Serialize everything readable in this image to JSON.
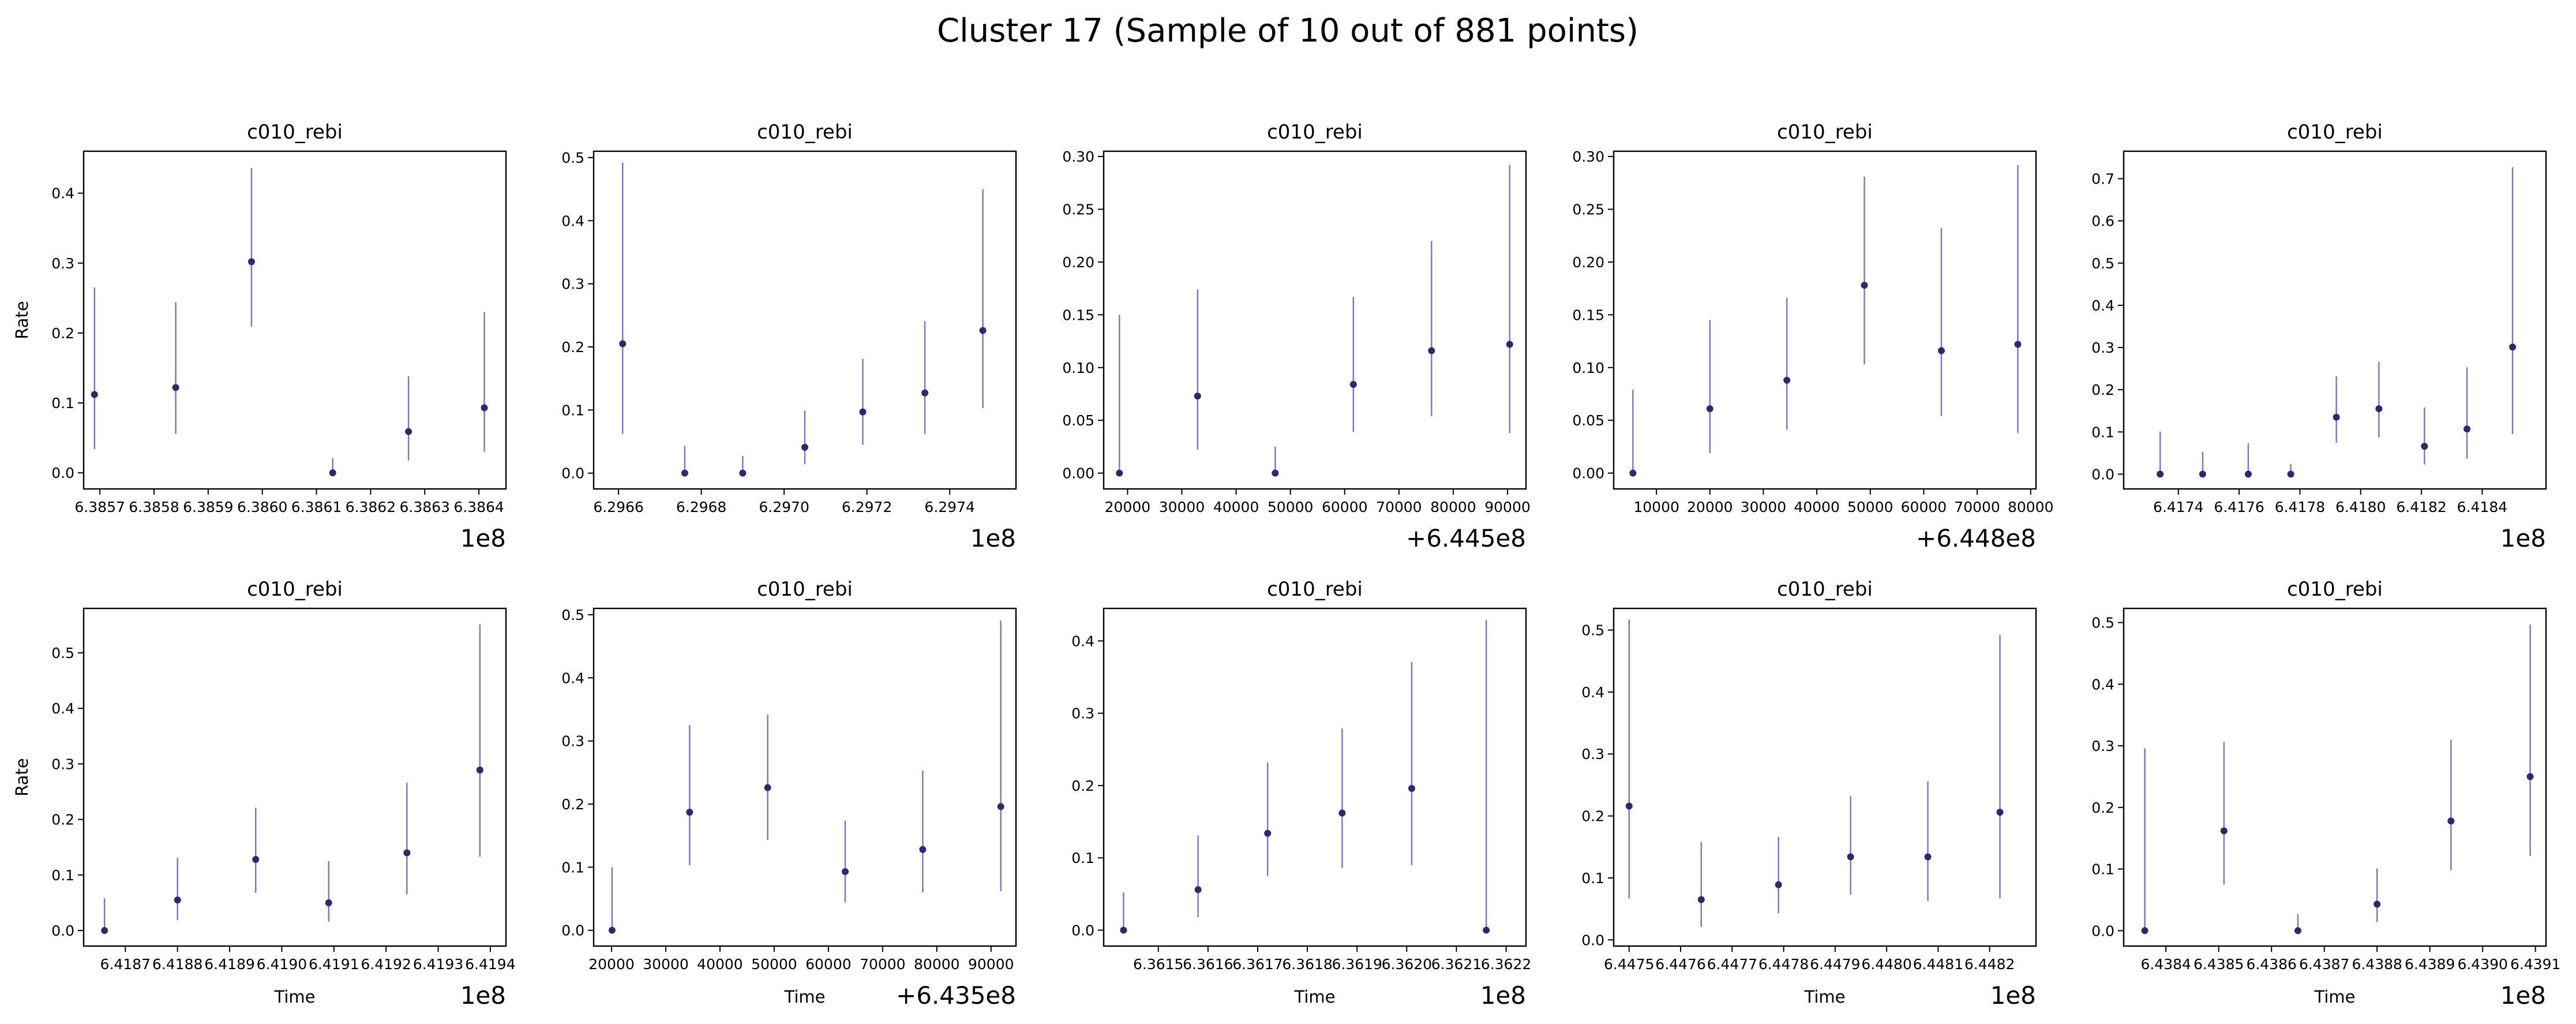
{
  "title": "Cluster 17 (Sample of 10 out of 881 points)",
  "colors": {
    "marker": "#2c2a6b",
    "errorbar": "#7a72c9",
    "axis": "#000000"
  },
  "chart_data": [
    {
      "type": "scatter",
      "title": "c010_rebi",
      "xlabel": "",
      "ylabel": "Rate",
      "offset_text": "1e8",
      "xlim": [
        6.38567,
        6.38645
      ],
      "ylim": [
        -0.023,
        0.46
      ],
      "xticks": [
        6.3857,
        6.3858,
        6.3859,
        6.386,
        6.3861,
        6.3862,
        6.3863,
        6.3864
      ],
      "xtick_labels": [
        "6.3857",
        "6.3858",
        "6.3859",
        "6.3860",
        "6.3861",
        "6.3862",
        "6.3863",
        "6.3864"
      ],
      "yticks": [
        0,
        0.1,
        0.2,
        0.3,
        0.4
      ],
      "ytick_labels": [
        "0.0",
        "0.1",
        "0.2",
        "0.3",
        "0.4"
      ],
      "points": [
        {
          "x": 6.38569,
          "y": 0.112,
          "lo": 0.034,
          "hi": 0.265
        },
        {
          "x": 6.38584,
          "y": 0.122,
          "lo": 0.056,
          "hi": 0.244
        },
        {
          "x": 6.38598,
          "y": 0.302,
          "lo": 0.209,
          "hi": 0.436
        },
        {
          "x": 6.38613,
          "y": 0.0,
          "lo": 0.0,
          "hi": 0.021
        },
        {
          "x": 6.38627,
          "y": 0.059,
          "lo": 0.018,
          "hi": 0.138
        },
        {
          "x": 6.38641,
          "y": 0.093,
          "lo": 0.03,
          "hi": 0.23
        }
      ]
    },
    {
      "type": "scatter",
      "title": "c010_rebi",
      "xlabel": "",
      "ylabel": "",
      "offset_text": "1e8",
      "xlim": [
        6.29654,
        6.29756
      ],
      "ylim": [
        -0.025,
        0.51
      ],
      "xticks": [
        6.2966,
        6.2968,
        6.297,
        6.2972,
        6.2974
      ],
      "xtick_labels": [
        "6.2966",
        "6.2968",
        "6.2970",
        "6.2972",
        "6.2974"
      ],
      "yticks": [
        0,
        0.1,
        0.2,
        0.3,
        0.4,
        0.5
      ],
      "ytick_labels": [
        "0.0",
        "0.1",
        "0.2",
        "0.3",
        "0.4",
        "0.5"
      ],
      "points": [
        {
          "x": 6.29661,
          "y": 0.205,
          "lo": 0.062,
          "hi": 0.492
        },
        {
          "x": 6.29676,
          "y": 0.0,
          "lo": 0.0,
          "hi": 0.043
        },
        {
          "x": 6.2969,
          "y": 0.0,
          "lo": 0.0,
          "hi": 0.027
        },
        {
          "x": 6.29705,
          "y": 0.041,
          "lo": 0.014,
          "hi": 0.099
        },
        {
          "x": 6.29719,
          "y": 0.097,
          "lo": 0.045,
          "hi": 0.181
        },
        {
          "x": 6.29734,
          "y": 0.127,
          "lo": 0.062,
          "hi": 0.241
        },
        {
          "x": 6.29748,
          "y": 0.226,
          "lo": 0.103,
          "hi": 0.45
        }
      ]
    },
    {
      "type": "scatter",
      "title": "c010_rebi",
      "xlabel": "",
      "ylabel": "",
      "offset_text": "+6.445e8",
      "xlim": [
        15600,
        93400
      ],
      "ylim": [
        -0.015,
        0.305
      ],
      "xticks": [
        20000,
        30000,
        40000,
        50000,
        60000,
        70000,
        80000,
        90000
      ],
      "xtick_labels": [
        "20000",
        "30000",
        "40000",
        "50000",
        "60000",
        "70000",
        "80000",
        "90000"
      ],
      "yticks": [
        0,
        0.05,
        0.1,
        0.15,
        0.2,
        0.25,
        0.3
      ],
      "ytick_labels": [
        "0.00",
        "0.05",
        "0.10",
        "0.15",
        "0.20",
        "0.25",
        "0.30"
      ],
      "points": [
        {
          "x": 18500,
          "y": 0.0,
          "lo": 0.0,
          "hi": 0.15
        },
        {
          "x": 32900,
          "y": 0.073,
          "lo": 0.022,
          "hi": 0.174
        },
        {
          "x": 47200,
          "y": 0.0,
          "lo": 0.0,
          "hi": 0.025
        },
        {
          "x": 61600,
          "y": 0.084,
          "lo": 0.039,
          "hi": 0.167
        },
        {
          "x": 76000,
          "y": 0.116,
          "lo": 0.054,
          "hi": 0.22
        },
        {
          "x": 90400,
          "y": 0.122,
          "lo": 0.038,
          "hi": 0.292
        }
      ]
    },
    {
      "type": "scatter",
      "title": "c010_rebi",
      "xlabel": "",
      "ylabel": "",
      "offset_text": "+6.448e8",
      "xlim": [
        2000,
        81000
      ],
      "ylim": [
        -0.015,
        0.305
      ],
      "xticks": [
        10000,
        20000,
        30000,
        40000,
        50000,
        60000,
        70000,
        80000
      ],
      "xtick_labels": [
        "10000",
        "20000",
        "30000",
        "40000",
        "50000",
        "60000",
        "70000",
        "80000"
      ],
      "yticks": [
        0,
        0.05,
        0.1,
        0.15,
        0.2,
        0.25,
        0.3
      ],
      "ytick_labels": [
        "0.00",
        "0.05",
        "0.10",
        "0.15",
        "0.20",
        "0.25",
        "0.30"
      ],
      "points": [
        {
          "x": 5600,
          "y": 0.0,
          "lo": 0.0,
          "hi": 0.079
        },
        {
          "x": 20000,
          "y": 0.061,
          "lo": 0.019,
          "hi": 0.145
        },
        {
          "x": 34400,
          "y": 0.088,
          "lo": 0.041,
          "hi": 0.166
        },
        {
          "x": 48900,
          "y": 0.178,
          "lo": 0.103,
          "hi": 0.281
        },
        {
          "x": 63300,
          "y": 0.116,
          "lo": 0.054,
          "hi": 0.232
        },
        {
          "x": 77600,
          "y": 0.122,
          "lo": 0.038,
          "hi": 0.292
        }
      ]
    },
    {
      "type": "scatter",
      "title": "c010_rebi",
      "xlabel": "",
      "ylabel": "",
      "offset_text": "1e8",
      "xlim": [
        6.41722,
        6.41861
      ],
      "ylim": [
        -0.035,
        0.765
      ],
      "xticks": [
        6.4174,
        6.4176,
        6.4178,
        6.418,
        6.4182,
        6.4184
      ],
      "xtick_labels": [
        "6.4174",
        "6.4176",
        "6.4178",
        "6.4180",
        "6.4182",
        "6.4184"
      ],
      "yticks": [
        0,
        0.1,
        0.2,
        0.3,
        0.4,
        0.5,
        0.6,
        0.7
      ],
      "ytick_labels": [
        "0.0",
        "0.1",
        "0.2",
        "0.3",
        "0.4",
        "0.5",
        "0.6",
        "0.7"
      ],
      "points": [
        {
          "x": 6.41734,
          "y": 0.0,
          "lo": 0.0,
          "hi": 0.101
        },
        {
          "x": 6.41748,
          "y": 0.0,
          "lo": 0.0,
          "hi": 0.053
        },
        {
          "x": 6.41763,
          "y": 0.0,
          "lo": 0.0,
          "hi": 0.073
        },
        {
          "x": 6.41777,
          "y": 0.0,
          "lo": 0.0,
          "hi": 0.024
        },
        {
          "x": 6.41792,
          "y": 0.135,
          "lo": 0.074,
          "hi": 0.232
        },
        {
          "x": 6.41806,
          "y": 0.155,
          "lo": 0.087,
          "hi": 0.266
        },
        {
          "x": 6.41821,
          "y": 0.066,
          "lo": 0.023,
          "hi": 0.158
        },
        {
          "x": 6.41835,
          "y": 0.107,
          "lo": 0.037,
          "hi": 0.253
        },
        {
          "x": 6.4185,
          "y": 0.301,
          "lo": 0.095,
          "hi": 0.727
        }
      ]
    },
    {
      "type": "scatter",
      "title": "c010_rebi",
      "xlabel": "Time",
      "ylabel": "Rate",
      "offset_text": "1e8",
      "xlim": [
        6.41862,
        6.41943
      ],
      "ylim": [
        -0.028,
        0.58
      ],
      "xticks": [
        6.4187,
        6.4188,
        6.4189,
        6.419,
        6.4191,
        6.4192,
        6.4193,
        6.4194
      ],
      "xtick_labels": [
        "6.4187",
        "6.4188",
        "6.4189",
        "6.4190",
        "6.4191",
        "6.4192",
        "6.4193",
        "6.4194"
      ],
      "yticks": [
        0,
        0.1,
        0.2,
        0.3,
        0.4,
        0.5
      ],
      "ytick_labels": [
        "0.0",
        "0.1",
        "0.2",
        "0.3",
        "0.4",
        "0.5"
      ],
      "points": [
        {
          "x": 6.41866,
          "y": 0.0,
          "lo": 0.0,
          "hi": 0.058
        },
        {
          "x": 6.4188,
          "y": 0.055,
          "lo": 0.019,
          "hi": 0.131
        },
        {
          "x": 6.41895,
          "y": 0.128,
          "lo": 0.068,
          "hi": 0.221
        },
        {
          "x": 6.41909,
          "y": 0.05,
          "lo": 0.016,
          "hi": 0.125
        },
        {
          "x": 6.41924,
          "y": 0.14,
          "lo": 0.065,
          "hi": 0.266
        },
        {
          "x": 6.41938,
          "y": 0.289,
          "lo": 0.133,
          "hi": 0.551
        }
      ]
    },
    {
      "type": "scatter",
      "title": "c010_rebi",
      "xlabel": "Time",
      "ylabel": "",
      "offset_text": "+6.435e8",
      "xlim": [
        16700,
        94600
      ],
      "ylim": [
        -0.025,
        0.51
      ],
      "xticks": [
        20000,
        30000,
        40000,
        50000,
        60000,
        70000,
        80000,
        90000
      ],
      "xtick_labels": [
        "20000",
        "30000",
        "40000",
        "50000",
        "60000",
        "70000",
        "80000",
        "90000"
      ],
      "yticks": [
        0,
        0.1,
        0.2,
        0.3,
        0.4,
        0.5
      ],
      "ytick_labels": [
        "0.0",
        "0.1",
        "0.2",
        "0.3",
        "0.4",
        "0.5"
      ],
      "points": [
        {
          "x": 20100,
          "y": 0.0,
          "lo": 0.0,
          "hi": 0.1
        },
        {
          "x": 34400,
          "y": 0.187,
          "lo": 0.103,
          "hi": 0.325
        },
        {
          "x": 48800,
          "y": 0.226,
          "lo": 0.143,
          "hi": 0.342
        },
        {
          "x": 63100,
          "y": 0.093,
          "lo": 0.044,
          "hi": 0.174
        },
        {
          "x": 77400,
          "y": 0.128,
          "lo": 0.06,
          "hi": 0.253
        },
        {
          "x": 91800,
          "y": 0.196,
          "lo": 0.062,
          "hi": 0.491
        }
      ]
    },
    {
      "type": "scatter",
      "title": "c010_rebi",
      "xlabel": "Time",
      "ylabel": "",
      "offset_text": "1e8",
      "xlim": [
        6.36139,
        6.36224
      ],
      "ylim": [
        -0.022,
        0.445
      ],
      "xticks": [
        6.3615,
        6.3616,
        6.3617,
        6.3618,
        6.3619,
        6.362,
        6.3621,
        6.3622
      ],
      "xtick_labels": [
        "6.3615",
        "6.3616",
        "6.3617",
        "6.3618",
        "6.3619",
        "6.3620",
        "6.3621",
        "6.3622"
      ],
      "yticks": [
        0,
        0.1,
        0.2,
        0.3,
        0.4
      ],
      "ytick_labels": [
        "0.0",
        "0.1",
        "0.2",
        "0.3",
        "0.4"
      ],
      "points": [
        {
          "x": 6.36143,
          "y": 0.0,
          "lo": 0.0,
          "hi": 0.052
        },
        {
          "x": 6.36158,
          "y": 0.056,
          "lo": 0.018,
          "hi": 0.131
        },
        {
          "x": 6.36172,
          "y": 0.134,
          "lo": 0.075,
          "hi": 0.232
        },
        {
          "x": 6.36187,
          "y": 0.162,
          "lo": 0.086,
          "hi": 0.279
        },
        {
          "x": 6.36201,
          "y": 0.196,
          "lo": 0.09,
          "hi": 0.371
        },
        {
          "x": 6.36216,
          "y": 0.0,
          "lo": 0.0,
          "hi": 0.429
        }
      ]
    },
    {
      "type": "scatter",
      "title": "c010_rebi",
      "xlabel": "Time",
      "ylabel": "",
      "offset_text": "1e8",
      "xlim": [
        6.44747,
        6.44829
      ],
      "ylim": [
        -0.01,
        0.535
      ],
      "xticks": [
        6.4475,
        6.4476,
        6.4477,
        6.4478,
        6.4479,
        6.448,
        6.4481,
        6.4482
      ],
      "xtick_labels": [
        "6.4475",
        "6.4476",
        "6.4477",
        "6.4478",
        "6.4479",
        "6.4480",
        "6.4481",
        "6.4482"
      ],
      "yticks": [
        0,
        0.1,
        0.2,
        0.3,
        0.4,
        0.5
      ],
      "ytick_labels": [
        "0.0",
        "0.1",
        "0.2",
        "0.3",
        "0.4",
        "0.5"
      ],
      "points": [
        {
          "x": 6.4475,
          "y": 0.216,
          "lo": 0.067,
          "hi": 0.517
        },
        {
          "x": 6.44764,
          "y": 0.065,
          "lo": 0.021,
          "hi": 0.158
        },
        {
          "x": 6.44779,
          "y": 0.089,
          "lo": 0.043,
          "hi": 0.166
        },
        {
          "x": 6.44793,
          "y": 0.134,
          "lo": 0.073,
          "hi": 0.232
        },
        {
          "x": 6.44808,
          "y": 0.134,
          "lo": 0.063,
          "hi": 0.256
        },
        {
          "x": 6.44822,
          "y": 0.206,
          "lo": 0.067,
          "hi": 0.492
        }
      ]
    },
    {
      "type": "scatter",
      "title": "c010_rebi",
      "xlabel": "Time",
      "ylabel": "",
      "offset_text": "1e8",
      "xlim": [
        6.43832,
        6.43912
      ],
      "ylim": [
        -0.025,
        0.523
      ],
      "xticks": [
        6.4384,
        6.4385,
        6.4386,
        6.4387,
        6.4388,
        6.4389,
        6.439,
        6.4391
      ],
      "xtick_labels": [
        "6.4384",
        "6.4385",
        "6.4386",
        "6.4387",
        "6.4388",
        "6.4389",
        "6.4390",
        "6.4391"
      ],
      "yticks": [
        0,
        0.1,
        0.2,
        0.3,
        0.4,
        0.5
      ],
      "ytick_labels": [
        "0.0",
        "0.1",
        "0.2",
        "0.3",
        "0.4",
        "0.5"
      ],
      "points": [
        {
          "x": 6.43836,
          "y": 0.0,
          "lo": 0.0,
          "hi": 0.296
        },
        {
          "x": 6.43851,
          "y": 0.162,
          "lo": 0.075,
          "hi": 0.306
        },
        {
          "x": 6.43865,
          "y": 0.0,
          "lo": 0.0,
          "hi": 0.027
        },
        {
          "x": 6.4388,
          "y": 0.043,
          "lo": 0.014,
          "hi": 0.101
        },
        {
          "x": 6.43894,
          "y": 0.178,
          "lo": 0.098,
          "hi": 0.31
        },
        {
          "x": 6.43909,
          "y": 0.25,
          "lo": 0.121,
          "hi": 0.497
        }
      ]
    }
  ]
}
